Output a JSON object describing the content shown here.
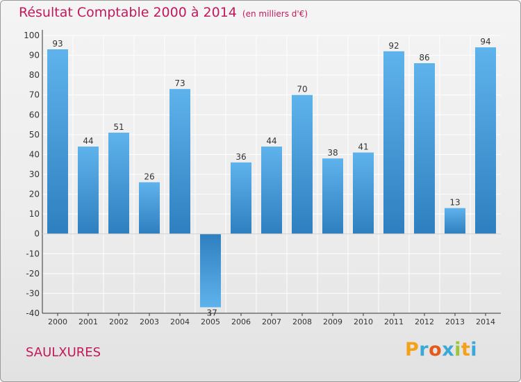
{
  "header": {
    "title": "Résultat Comptable 2000 à 2014",
    "subtitle": "(en milliers d'€)"
  },
  "footer": {
    "commune": "SAULXURES",
    "brand_letters": [
      {
        "ch": "P",
        "color": "#f4a11a"
      },
      {
        "ch": "r",
        "color": "#3aa8d8"
      },
      {
        "ch": "o",
        "color": "#e35a1c"
      },
      {
        "ch": "x",
        "color": "#3aa8d8"
      },
      {
        "ch": "i",
        "color": "#9bc53d"
      },
      {
        "ch": "t",
        "color": "#f4a11a"
      },
      {
        "ch": "i",
        "color": "#3aa8d8"
      }
    ]
  },
  "chart_data": {
    "type": "bar",
    "categories": [
      "2000",
      "2001",
      "2002",
      "2003",
      "2004",
      "2005",
      "2006",
      "2007",
      "2008",
      "2009",
      "2010",
      "2011",
      "2012",
      "2013",
      "2014"
    ],
    "values": [
      93,
      44,
      51,
      26,
      73,
      -37,
      36,
      44,
      70,
      38,
      41,
      92,
      86,
      13,
      94
    ],
    "ylim": [
      -40,
      100
    ],
    "yticks": [
      100,
      90,
      80,
      70,
      60,
      50,
      40,
      30,
      20,
      10,
      0,
      -10,
      -20,
      -30,
      -40
    ],
    "grid": true,
    "colors": {
      "bar_top": "#5fb3ec",
      "bar_bottom": "#2e7fbf",
      "grid": "#ffffff",
      "axis": "#333333",
      "text": "#333333"
    }
  }
}
